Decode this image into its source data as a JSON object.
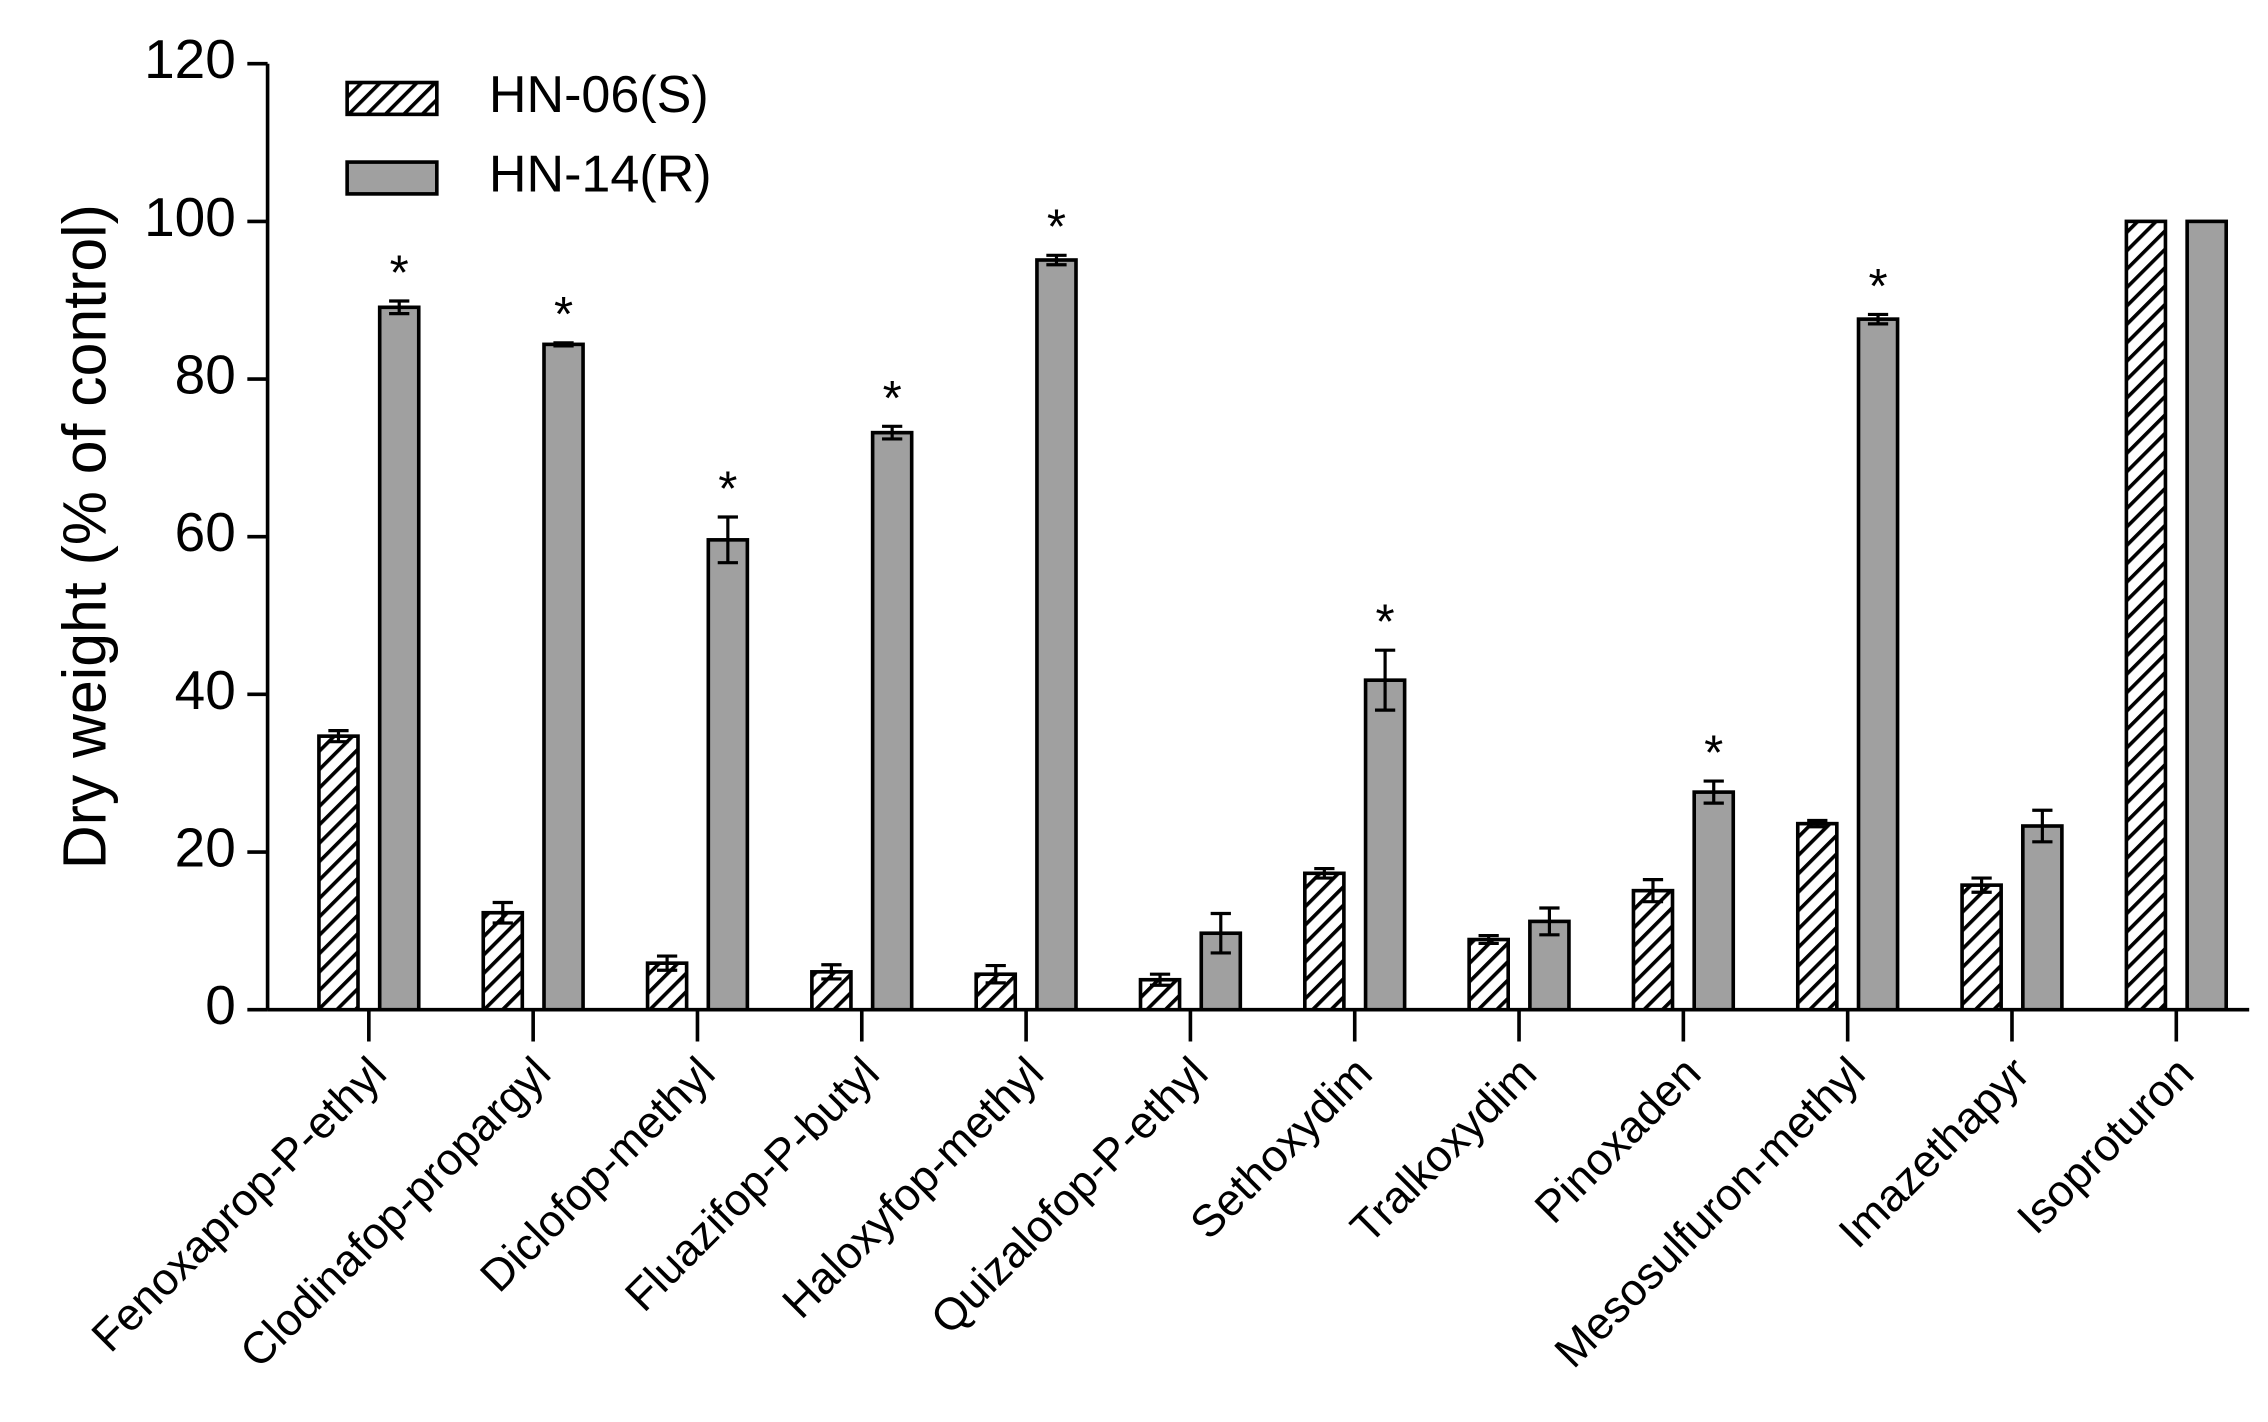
{
  "chart_data": {
    "type": "bar",
    "ylabel": "Dry weight (% of control)",
    "categories": [
      "Fenoxaprop-P-ethyl",
      "Clodinafop-propargyl",
      "Diclofop-methyl",
      "Fluazifop-P-butyl",
      "Haloxyfop-methyl",
      "Quizalofop-P-ethyl",
      "Sethoxydim",
      "Tralkoxydim",
      "Pinoxaden",
      "Mesosulfuron-methyl",
      "Imazethapyr",
      "Isoproturon"
    ],
    "series": [
      {
        "name": "HN-06(S)",
        "color": "#ffffff",
        "pattern": "hatch",
        "values": [
          34.7,
          12.3,
          5.9,
          4.8,
          4.5,
          3.8,
          17.3,
          8.9,
          15.1,
          23.6,
          15.8,
          100
        ],
        "errors": [
          0.7,
          1.3,
          0.9,
          0.9,
          1.1,
          0.7,
          0.6,
          0.5,
          1.4,
          0.4,
          0.9,
          null
        ],
        "annotations": [
          null,
          null,
          null,
          null,
          null,
          null,
          null,
          null,
          null,
          null,
          null,
          null
        ]
      },
      {
        "name": "HN-14(R)",
        "color": "#a0a0a0",
        "pattern": "solid",
        "values": [
          89.1,
          84.4,
          59.6,
          73.2,
          95.1,
          9.7,
          41.8,
          11.2,
          27.6,
          87.6,
          23.3,
          100
        ],
        "errors": [
          0.8,
          0.2,
          2.9,
          0.8,
          0.6,
          2.5,
          3.8,
          1.7,
          1.4,
          0.6,
          2.0,
          null
        ],
        "annotations": [
          "*",
          "*",
          "*",
          "*",
          "*",
          null,
          "*",
          null,
          "*",
          "*",
          null,
          null
        ]
      }
    ],
    "ylim": [
      0,
      120
    ],
    "yticks": [
      0,
      20,
      40,
      60,
      80,
      100,
      120
    ],
    "grid": false,
    "legend": "top-left"
  }
}
